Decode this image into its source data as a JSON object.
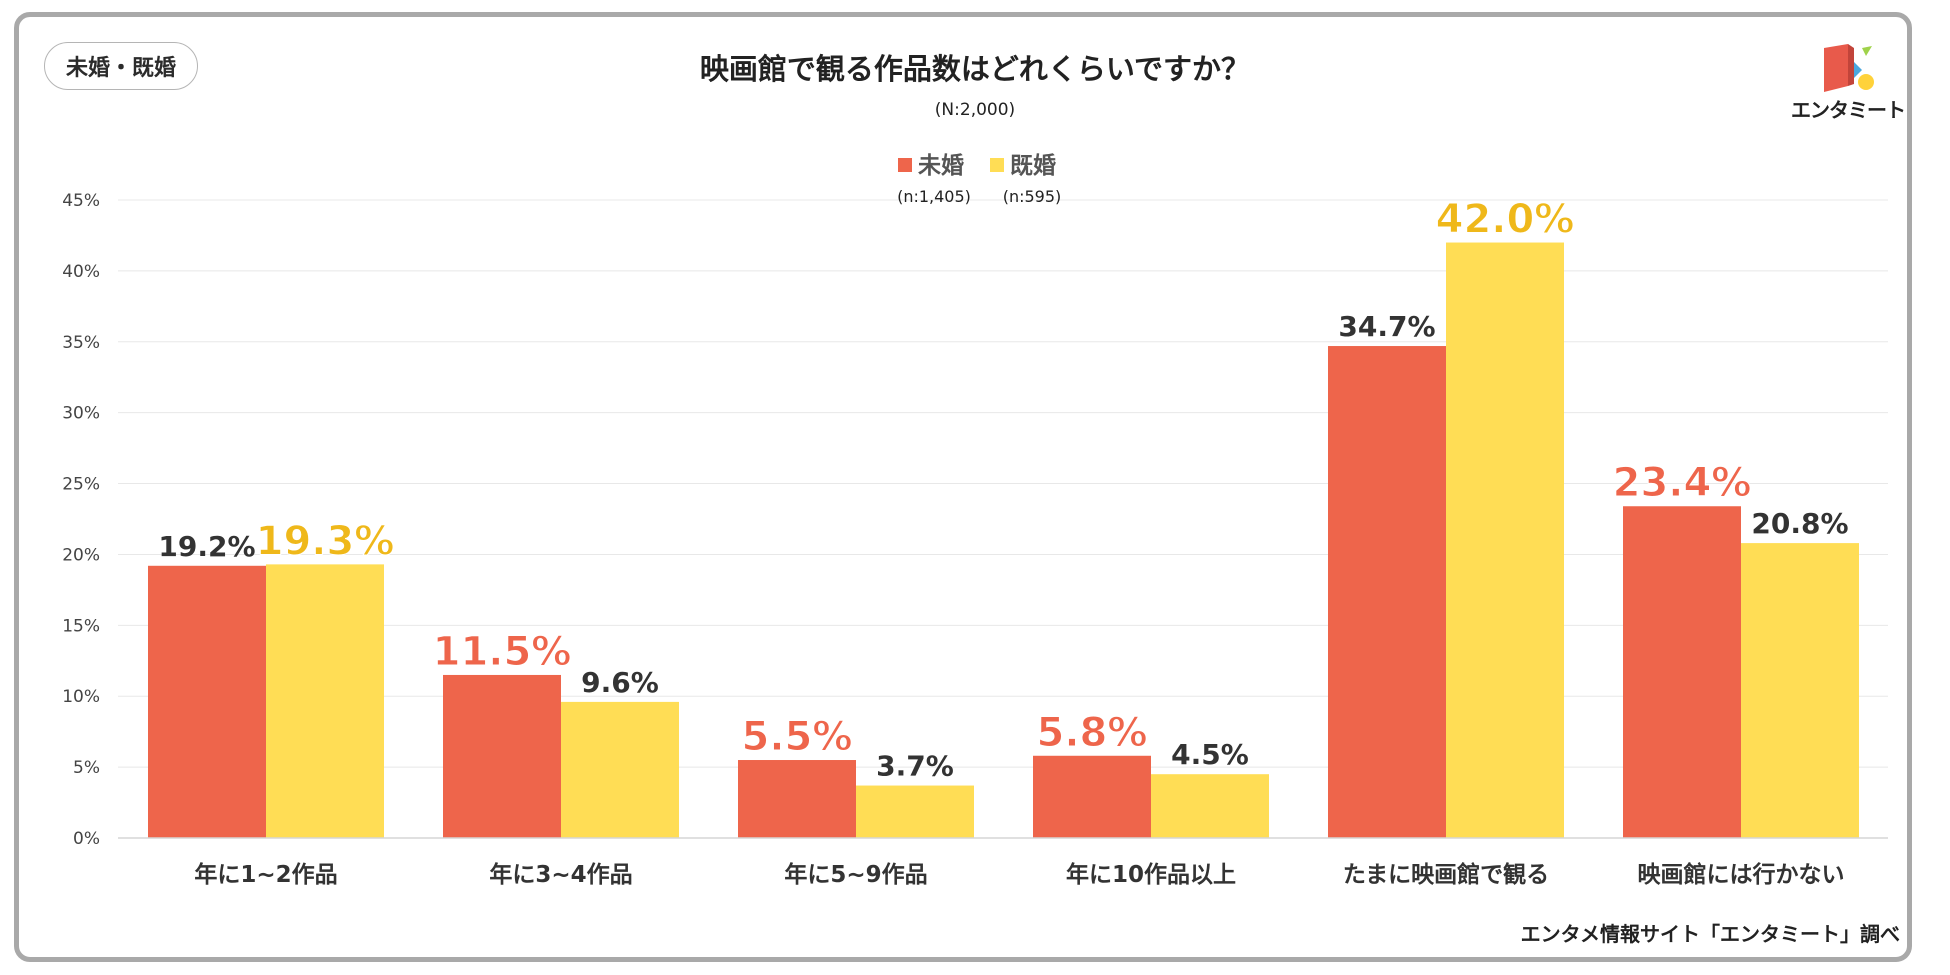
{
  "tag_label": "未婚・既婚",
  "logo_text": "エンタミート",
  "credit": "エンタメ情報サイト「エンタミート」調べ",
  "colors": {
    "series1": "#ee654b",
    "series2": "#ffdd55",
    "highlight2": "#efb81a",
    "grid": "#e8e8e8",
    "text": "#333333"
  },
  "chart_data": {
    "type": "bar",
    "title": "映画館で観る作品数はどれくらいですか？",
    "subtitle": "(N:2,000)",
    "categories": [
      "年に1~2作品",
      "年に3~4作品",
      "年に5~9作品",
      "年に10作品以上",
      "たまに映画館で観る",
      "映画館には行かない"
    ],
    "series": [
      {
        "name": "未婚",
        "n_label": "(n:1,405)",
        "values": [
          19.2,
          11.5,
          5.5,
          5.8,
          34.7,
          23.4
        ],
        "labels": [
          "19.2%",
          "11.5%",
          "5.5%",
          "5.8%",
          "34.7%",
          "23.4%"
        ]
      },
      {
        "name": "既婚",
        "n_label": "(n:595)",
        "values": [
          19.3,
          9.6,
          3.7,
          4.5,
          42.0,
          20.8
        ],
        "labels": [
          "19.3%",
          "9.6%",
          "3.7%",
          "4.5%",
          "42.0%",
          "20.8%"
        ]
      }
    ],
    "highlighted_series_by_category": [
      1,
      0,
      0,
      0,
      1,
      0
    ],
    "ylim": [
      0,
      45
    ],
    "yticks": [
      0,
      5,
      10,
      15,
      20,
      25,
      30,
      35,
      40,
      45
    ],
    "ytick_labels": [
      "0%",
      "5%",
      "10%",
      "15%",
      "20%",
      "25%",
      "30%",
      "35%",
      "40%",
      "45%"
    ],
    "grid": true,
    "legend_position": "top-center"
  }
}
